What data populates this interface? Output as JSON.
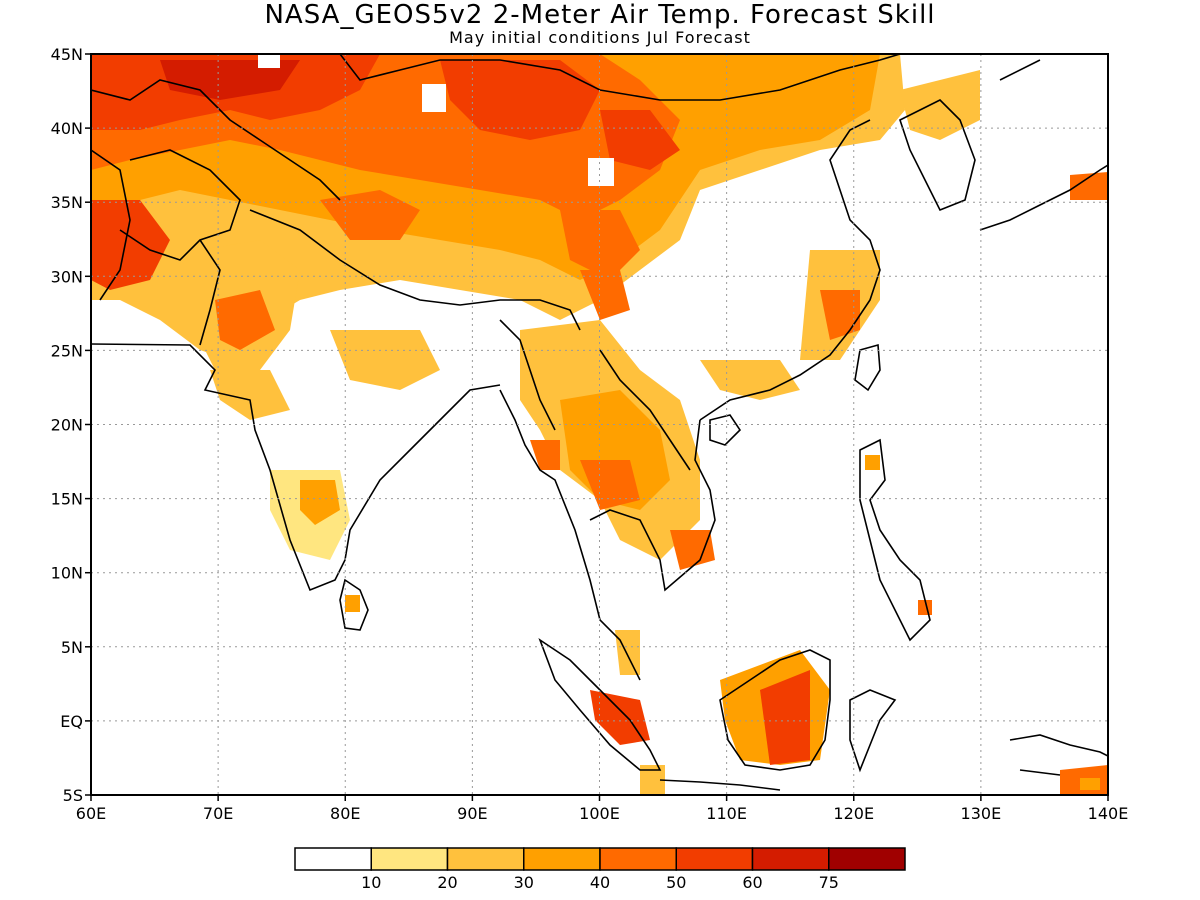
{
  "title": "NASA_GEOS5v2 2-Meter Air Temp. Forecast Skill",
  "subtitle": "May initial conditions  Jul Forecast",
  "map": {
    "lon_range": [
      60,
      140
    ],
    "lat_range": [
      -5,
      45
    ],
    "lon_ticks": [
      "60E",
      "70E",
      "80E",
      "90E",
      "100E",
      "110E",
      "120E",
      "130E",
      "140E"
    ],
    "lat_ticks": [
      "5S",
      "EQ",
      "5N",
      "10N",
      "15N",
      "20N",
      "25N",
      "30N",
      "35N",
      "40N",
      "45N"
    ],
    "grid": "dotted"
  },
  "legend": {
    "colors": [
      "#ffffff",
      "#ffe680",
      "#ffc13d",
      "#ffa000",
      "#ff6a00",
      "#f23d00",
      "#d41c00",
      "#a00000"
    ],
    "labels": [
      "10",
      "20",
      "30",
      "40",
      "50",
      "60",
      "75"
    ]
  }
}
